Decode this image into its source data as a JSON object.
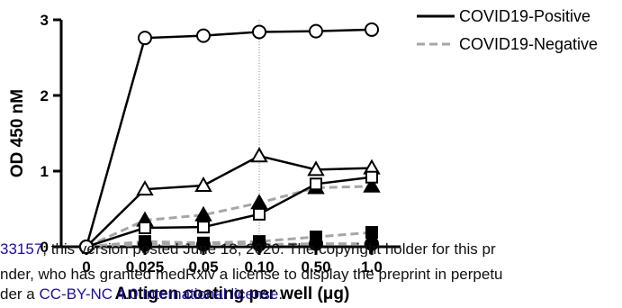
{
  "chart_data": {
    "type": "line",
    "xlabel": "Antigen coating per well (μg)",
    "ylabel": "OD 450 nM",
    "categories": [
      "0",
      "0.025",
      "0.05",
      "0.10",
      "0.50",
      "1.0"
    ],
    "ylim": [
      0,
      3
    ],
    "yticks": [
      "0",
      "1",
      "2",
      "3"
    ],
    "reference_line_category": "0.10",
    "legend": {
      "placement": "top-right",
      "entries": [
        "COVID19-Positive",
        "COVID19-Negative"
      ]
    },
    "series": [
      {
        "group": "COVID19-Positive",
        "marker": "circle-open",
        "values": [
          0,
          2.76,
          2.79,
          2.84,
          2.85,
          2.87
        ]
      },
      {
        "group": "COVID19-Positive",
        "marker": "triangle-open",
        "values": [
          0,
          0.76,
          0.81,
          1.2,
          1.02,
          1.04
        ]
      },
      {
        "group": "COVID19-Positive",
        "marker": "square-open",
        "values": [
          0,
          0.25,
          0.26,
          0.43,
          0.83,
          0.92
        ]
      },
      {
        "group": "COVID19-Negative",
        "marker": "triangle-filled",
        "values": [
          0,
          0.35,
          0.42,
          0.58,
          0.78,
          0.8
        ]
      },
      {
        "group": "COVID19-Negative",
        "marker": "square-filled",
        "values": [
          0,
          0.07,
          0.05,
          0.07,
          0.13,
          0.19
        ]
      },
      {
        "group": "COVID19-Negative",
        "marker": "circle-filled",
        "values": [
          0,
          0.03,
          0.03,
          0.03,
          0.04,
          0.04
        ]
      }
    ]
  },
  "watermark": {
    "line1_link": "33157",
    "line1_text": "; this version posted June 18, 2020. The copyright holder for this pr",
    "line2_text": "nder, who has granted medRxiv a license to display the preprint in perpetu",
    "line3_prefix": "der a ",
    "line3_link": "CC-BY-NC 4.0 International license",
    "line3_suffix": "."
  }
}
